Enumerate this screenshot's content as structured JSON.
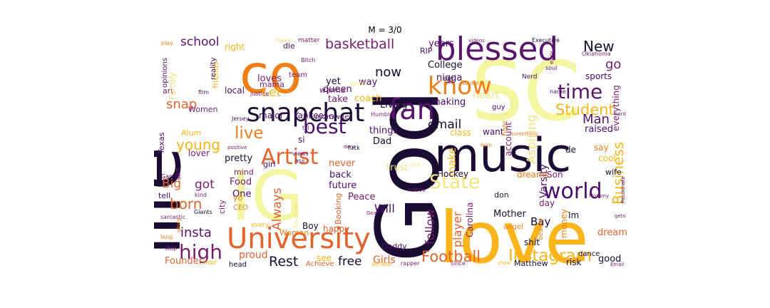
{
  "title": "M = 3/0",
  "words": [
    {
      "t": "love",
      "c": "#fbb41a"
    },
    {
      "t": "God",
      "c": "#1a0c33"
    },
    {
      "t": "SC",
      "c": "#f3f5a0"
    },
    {
      "t": "life",
      "c": "#1a0c33"
    },
    {
      "t": "IG",
      "c": "#f3f5a0"
    },
    {
      "t": "music",
      "c": "#1a0c33"
    },
    {
      "t": "co",
      "c": "#f07e14"
    },
    {
      "t": "blessed",
      "c": "#5a146e"
    },
    {
      "t": "University",
      "c": "#e4622c"
    },
    {
      "t": "snapchat",
      "c": "#1a0c33"
    },
    {
      "t": "fan",
      "c": "#5a146e"
    },
    {
      "t": "know",
      "c": "#f07e14"
    },
    {
      "t": "State",
      "c": "#f6e27d"
    },
    {
      "t": "world",
      "c": "#4a0c6b"
    },
    {
      "t": "Artist",
      "c": "#e4622c"
    },
    {
      "t": "time",
      "c": "#5a146e"
    },
    {
      "t": "best",
      "c": "#4a0c6b"
    },
    {
      "t": "high",
      "c": "#781c6d"
    },
    {
      "t": "Instagram",
      "c": "#fbb41a"
    },
    {
      "t": "Football",
      "c": "#e4622c"
    },
    {
      "t": "Student",
      "c": "#fbb41a"
    },
    {
      "t": "basketball",
      "c": "#781c6d"
    },
    {
      "t": "live",
      "c": "#f07e14"
    },
    {
      "t": "young",
      "c": "#fbb41a"
    },
    {
      "t": "born",
      "c": "#e4622c"
    },
    {
      "t": "Business",
      "c": "#fbb41a"
    },
    {
      "t": "New",
      "c": "#1a0c33"
    },
    {
      "t": "Rest",
      "c": "#1a0c33"
    },
    {
      "t": "free",
      "c": "#1a0c33"
    },
    {
      "t": "now",
      "c": "#1a0c33"
    },
    {
      "t": "insta",
      "c": "#5a146e"
    },
    {
      "t": "gmail",
      "c": "#1a0c33"
    },
    {
      "t": "Man",
      "c": "#5a146e"
    },
    {
      "t": "school",
      "c": "#5a146e"
    },
    {
      "t": "go",
      "c": "#781c6d"
    },
    {
      "t": "Let",
      "c": "#fbb41a"
    },
    {
      "t": "snap",
      "c": "#e4622c"
    },
    {
      "t": "got",
      "c": "#781c6d"
    },
    {
      "t": "Big",
      "c": "#e4622c"
    },
    {
      "t": "Always",
      "c": "#e4622c"
    },
    {
      "t": "follow",
      "c": "#781c6d"
    },
    {
      "t": "player",
      "c": "#e4622c"
    },
    {
      "t": "Aspiring",
      "c": "#f6e27d"
    },
    {
      "t": "Will",
      "c": "#4a0c6b"
    },
    {
      "t": "make",
      "c": "#fbb41a"
    },
    {
      "t": "Bay",
      "c": "#1a0c33"
    },
    {
      "t": "Varsity",
      "c": "#4a0c6b"
    },
    {
      "t": "raised",
      "c": "#4a0c6b"
    },
    {
      "t": "heart",
      "c": "#f6e27d"
    },
    {
      "t": "College",
      "c": "#1a0c33"
    },
    {
      "t": "RIP",
      "c": "#4a0c6b"
    },
    {
      "t": "years",
      "c": "#4a0c6b"
    },
    {
      "t": "nigga",
      "c": "#4a0c6b"
    },
    {
      "t": "Girls",
      "c": "#e4622c"
    },
    {
      "t": "proud",
      "c": "#e4622c"
    },
    {
      "t": "Founder",
      "c": "#e4622c"
    },
    {
      "t": "dream",
      "c": "#e4622c"
    },
    {
      "t": "good",
      "c": "#1a0c33"
    },
    {
      "t": "Mother",
      "c": "#1a0c33"
    },
    {
      "t": "Food",
      "c": "#781c6d"
    },
    {
      "t": "One",
      "c": "#4a0c6b"
    },
    {
      "t": "loves",
      "c": "#781c6d"
    },
    {
      "t": "yet",
      "c": "#1a0c33"
    },
    {
      "t": "queen",
      "c": "#4a0c6b"
    },
    {
      "t": "coach",
      "c": "#fbb41a"
    },
    {
      "t": "take",
      "c": "#781c6d"
    },
    {
      "t": "way",
      "c": "#4a0c6b"
    },
    {
      "t": "Living",
      "c": "#1a0c33"
    },
    {
      "t": "making",
      "c": "#4a0c6b"
    },
    {
      "t": "things",
      "c": "#4a0c6b"
    },
    {
      "t": "Dad",
      "c": "#1a0c33"
    },
    {
      "t": "never",
      "c": "#e4622c"
    },
    {
      "t": "back",
      "c": "#4a0c6b"
    },
    {
      "t": "future",
      "c": "#4a0c6b"
    },
    {
      "t": "Peace",
      "c": "#781c6d"
    },
    {
      "t": "Hockey",
      "c": "#1a0c33"
    },
    {
      "t": "Carolina",
      "c": "#781c6d"
    },
    {
      "t": "want",
      "c": "#4a0c6b"
    },
    {
      "t": "class",
      "c": "#fbb41a"
    },
    {
      "t": "account",
      "c": "#781c6d"
    },
    {
      "t": "dreams",
      "c": "#f07e14"
    },
    {
      "t": "Son",
      "c": "#781c6d"
    },
    {
      "t": "day",
      "c": "#781c6d"
    },
    {
      "t": "Im",
      "c": "#1a0c33"
    },
    {
      "t": "money",
      "c": "#f07e14"
    },
    {
      "t": "shit",
      "c": "#1a0c33"
    },
    {
      "t": "dance",
      "c": "#1a0c33"
    },
    {
      "t": "risk",
      "c": "#1a0c33"
    },
    {
      "t": "sports",
      "c": "#4a0c6b"
    },
    {
      "t": "everything",
      "c": "#781c6d"
    },
    {
      "t": "cool",
      "c": "#fbb41a"
    },
    {
      "t": "say",
      "c": "#f07e14"
    },
    {
      "t": "wife",
      "c": "#1a0c33"
    },
    {
      "t": "de",
      "c": "#1a0c33"
    },
    {
      "t": "Matthew",
      "c": "#1a0c33"
    },
    {
      "t": "happy",
      "c": "#e4622c"
    },
    {
      "t": "Daddy",
      "c": "#4a0c6b"
    },
    {
      "t": "Woman",
      "c": "#f07e14"
    },
    {
      "t": "Boy",
      "c": "#1a0c33"
    },
    {
      "t": "Booking",
      "c": "#e4622c"
    },
    {
      "t": "pretty",
      "c": "#1a0c33"
    },
    {
      "t": "mind",
      "c": "#781c6d"
    },
    {
      "t": "girl",
      "c": "#4a0c6b"
    },
    {
      "t": "lover",
      "c": "#781c6d"
    },
    {
      "t": "Texas",
      "c": "#4a0c6b"
    },
    {
      "t": "Alum",
      "c": "#fbb41a"
    },
    {
      "t": "si",
      "c": "#4a0c6b"
    },
    {
      "t": "Women",
      "c": "#781c6d"
    },
    {
      "t": "major",
      "c": "#4a0c6b"
    },
    {
      "t": "Yankees",
      "c": "#4a0c6b"
    },
    {
      "t": "local",
      "c": "#4a0c6b"
    },
    {
      "t": "art",
      "c": "#781c6d"
    },
    {
      "t": "mama",
      "c": "#781c6d"
    },
    {
      "t": "wanna",
      "c": "#781c6d"
    },
    {
      "t": "friends",
      "c": "#fbb41a"
    },
    {
      "t": "Family",
      "c": "#f6e27d"
    },
    {
      "t": "right",
      "c": "#fbb41a"
    },
    {
      "t": "die",
      "c": "#4a0c6b"
    },
    {
      "t": "tell",
      "c": "#4a0c6b"
    },
    {
      "t": "city",
      "c": "#781c6d"
    },
    {
      "t": "CEO",
      "c": "#f07e14"
    },
    {
      "t": "yo",
      "c": "#f07e14"
    },
    {
      "t": "mom",
      "c": "#4a0c6b"
    },
    {
      "t": "Owner",
      "c": "#4a0c6b"
    },
    {
      "t": "team",
      "c": "#781c6d"
    },
    {
      "t": "see",
      "c": "#fbb41a"
    },
    {
      "t": "Hair",
      "c": "#fbb41a"
    },
    {
      "t": "head",
      "c": "#1a0c33"
    },
    {
      "t": "Achieve",
      "c": "#e4622c"
    },
    {
      "t": "guy",
      "c": "#4a0c6b"
    },
    {
      "t": "Nerd",
      "c": "#4a0c6b"
    },
    {
      "t": "name",
      "c": "#4a0c6b"
    },
    {
      "t": "soul",
      "c": "#4a0c6b"
    },
    {
      "t": "Executive",
      "c": "#1a0c33"
    },
    {
      "t": "Oklahoma",
      "c": "#781c6d"
    },
    {
      "t": "easy",
      "c": "#781c6d"
    },
    {
      "t": "videos",
      "c": "#781c6d"
    },
    {
      "t": "us",
      "c": "#781c6d"
    },
    {
      "t": "Auntie",
      "c": "#f07e14"
    },
    {
      "t": "matter",
      "c": "#781c6d"
    },
    {
      "t": "travel",
      "c": "#f6e27d"
    },
    {
      "t": "play",
      "c": "#f07e14"
    },
    {
      "t": "opinions",
      "c": "#4a0c6b"
    },
    {
      "t": "reality",
      "c": "#4a0c6b"
    },
    {
      "t": "Bitch",
      "c": "#781c6d"
    },
    {
      "t": "Writer",
      "c": "#f6e27d"
    },
    {
      "t": "film",
      "c": "#4a0c6b"
    },
    {
      "t": "justice",
      "c": "#781c6d"
    },
    {
      "t": "favorite",
      "c": "#f6e27d"
    },
    {
      "t": "Jersey",
      "c": "#4a0c6b"
    },
    {
      "t": "till",
      "c": "#781c6d"
    },
    {
      "t": "Humble",
      "c": "#781c6d"
    },
    {
      "t": "faith",
      "c": "#f07e14"
    },
    {
      "t": "something",
      "c": "#f07e14"
    },
    {
      "t": "hard",
      "c": "#781c6d"
    },
    {
      "t": "Gamer",
      "c": "#4a0c6b"
    },
    {
      "t": "ain't",
      "c": "#781c6d"
    },
    {
      "t": "kind",
      "c": "#781c6d"
    },
    {
      "t": "Giants",
      "c": "#1a0c33"
    },
    {
      "t": "sarcastic",
      "c": "#781c6d"
    },
    {
      "t": "long",
      "c": "#f07e14"
    },
    {
      "t": "glory",
      "c": "#f07e14"
    },
    {
      "t": "stop",
      "c": "#781c6d"
    },
    {
      "t": "every",
      "c": "#fbb41a"
    },
    {
      "t": "Southern",
      "c": "#f6e27d"
    },
    {
      "t": "positive",
      "c": "#781c6d"
    },
    {
      "t": "views",
      "c": "#4a0c6b"
    },
    {
      "t": "ass",
      "c": "#4a0c6b"
    },
    {
      "t": "done",
      "c": "#781c6d"
    },
    {
      "t": "fuck",
      "c": "#1a0c33"
    },
    {
      "t": "trust",
      "c": "#f6e27d"
    },
    {
      "t": "USA",
      "c": "#f6e27d"
    },
    {
      "t": "native",
      "c": "#781c6d"
    },
    {
      "t": "Goal",
      "c": "#781c6d"
    },
    {
      "t": "don",
      "c": "#1a0c33"
    },
    {
      "t": "angel",
      "c": "#f07e14"
    },
    {
      "t": "beauty",
      "c": "#f07e14"
    },
    {
      "t": "Fight",
      "c": "#f07e14"
    },
    {
      "t": "athlete",
      "c": "#fbb41a"
    },
    {
      "t": "rapper",
      "c": "#781c6d"
    },
    {
      "t": "since",
      "c": "#781c6d"
    },
    {
      "t": "show",
      "c": "#fbb41a"
    },
    {
      "t": "Mommy",
      "c": "#781c6d"
    },
    {
      "t": "Email",
      "c": "#781c6d"
    },
    {
      "t": "gets",
      "c": "#781c6d"
    },
    {
      "t": "Passionate",
      "c": "#4a0c6b"
    },
    {
      "t": "UNT",
      "c": "#1a0c33"
    }
  ]
}
